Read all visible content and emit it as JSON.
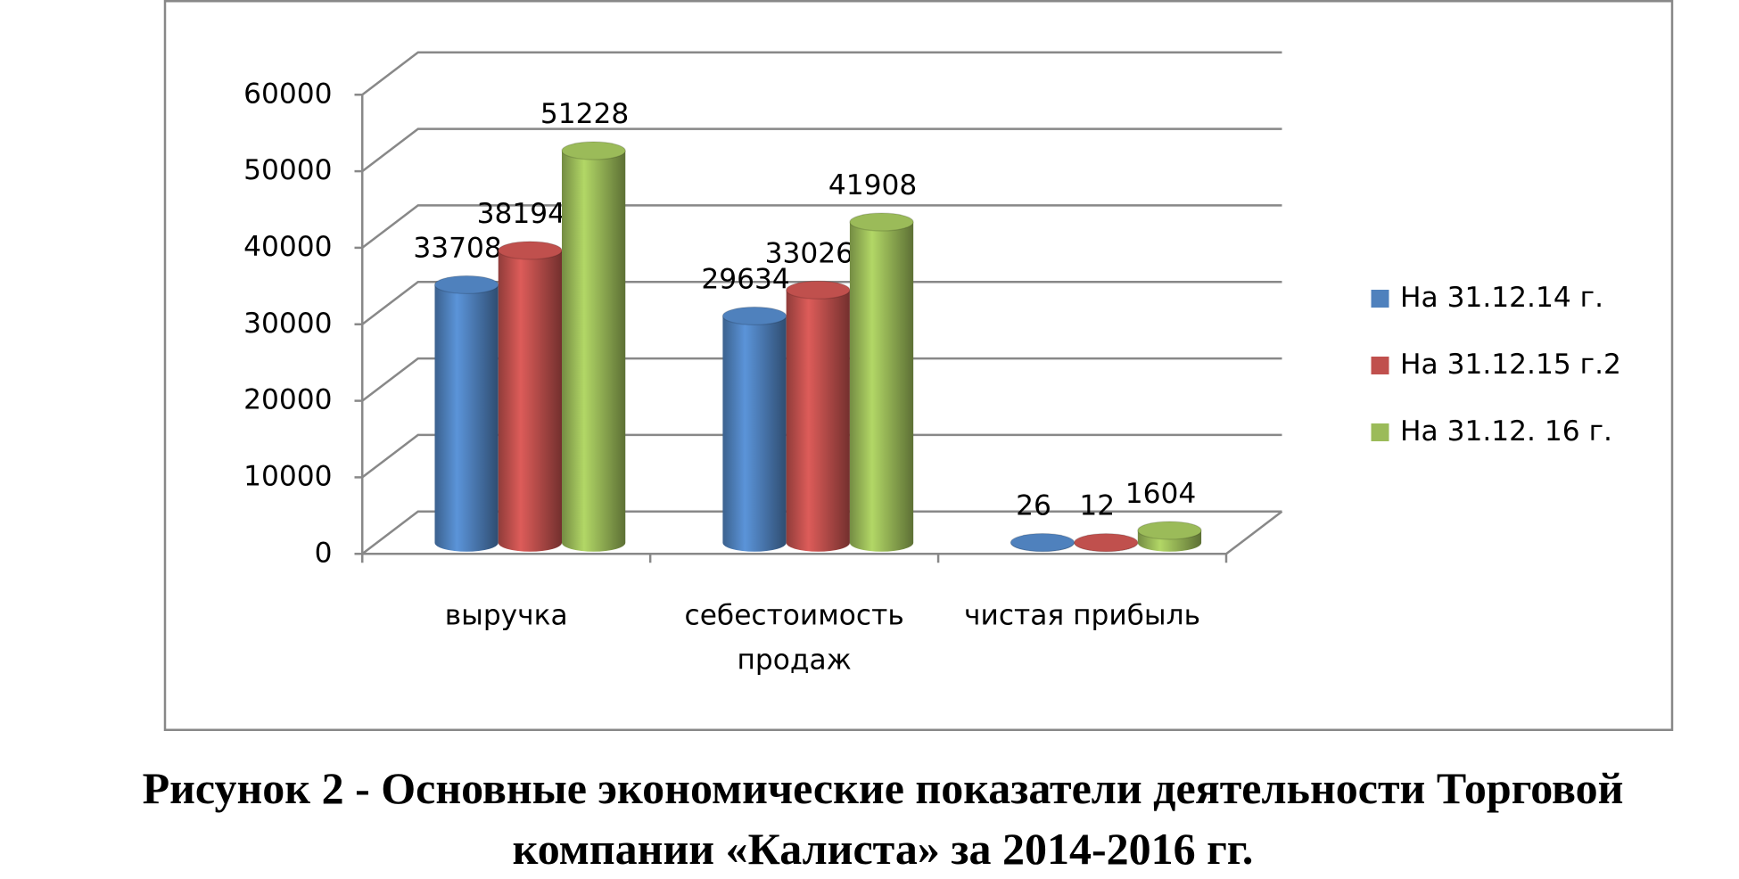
{
  "chart_data": {
    "type": "bar3d",
    "title": "Рисунок 2 - Основные экономические показатели деятельности Торговой компании «Калиста» за 2014-2016 гг.",
    "categories": [
      "выручка",
      "себестоимость продаж",
      "чистая прибыль"
    ],
    "series": [
      {
        "name": "На 31.12.14 г.",
        "color": "#4f81bd",
        "values": [
          33708,
          29634,
          26
        ]
      },
      {
        "name": "На 31.12.15 г.2",
        "color": "#c0504d",
        "values": [
          38194,
          33026,
          12
        ]
      },
      {
        "name": "На 31.12. 16 г.",
        "color": "#9bbb59",
        "values": [
          51228,
          41908,
          1604
        ]
      }
    ],
    "ylim": [
      0,
      60000
    ],
    "yticks": [
      0,
      10000,
      20000,
      30000,
      40000,
      50000,
      60000
    ],
    "grid": true,
    "legend": "right"
  }
}
